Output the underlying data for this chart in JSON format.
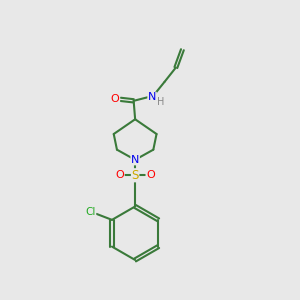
{
  "background_color": "#e8e8e8",
  "bond_color": "#3a7a3a",
  "atom_colors": {
    "O": "#ff0000",
    "N": "#0000ee",
    "H": "#888888",
    "S": "#ccaa00",
    "Cl": "#22aa22"
  },
  "figsize": [
    3.0,
    3.0
  ],
  "dpi": 100
}
